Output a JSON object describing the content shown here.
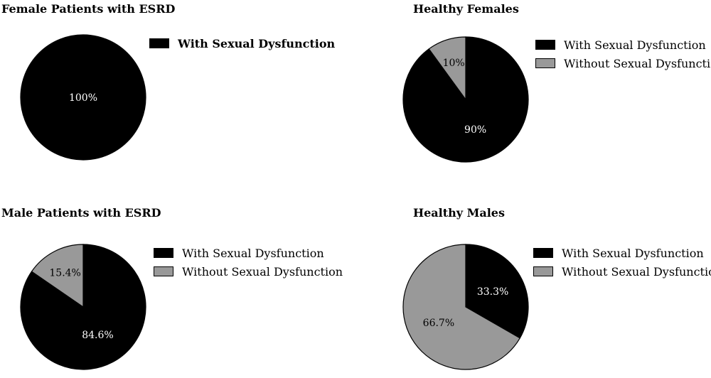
{
  "chart_data": [
    {
      "type": "pie",
      "title": "Female Patients with ESRD",
      "slices": [
        {
          "label": "With Sexual Dysfunction",
          "value": 100,
          "text": "100%",
          "color": "#000000",
          "text_color": "#ffffff"
        }
      ],
      "legend_bold": true
    },
    {
      "type": "pie",
      "title": "Healthy Females",
      "slices": [
        {
          "label": "With Sexual Dysfunction",
          "value": 90,
          "text": "90%",
          "color": "#000000",
          "text_color": "#ffffff"
        },
        {
          "label": "Without Sexual Dysfunction",
          "value": 10,
          "text": "10%",
          "color": "#999999",
          "text_color": "#000000"
        }
      ],
      "legend_bold": false
    },
    {
      "type": "pie",
      "title": "Male Patients with ESRD",
      "slices": [
        {
          "label": "With Sexual Dysfunction",
          "value": 84.6,
          "text": "84.6%",
          "color": "#000000",
          "text_color": "#ffffff"
        },
        {
          "label": "Without Sexual Dysfunction",
          "value": 15.4,
          "text": "15.4%",
          "color": "#999999",
          "text_color": "#000000"
        }
      ],
      "legend_bold": false
    },
    {
      "type": "pie",
      "title": "Healthy Males",
      "slices": [
        {
          "label": "With Sexual Dysfunction",
          "value": 33.3,
          "text": "33.3%",
          "color": "#000000",
          "text_color": "#ffffff"
        },
        {
          "label": "Without Sexual Dysfunction",
          "value": 66.7,
          "text": "66.7%",
          "color": "#999999",
          "text_color": "#000000"
        }
      ],
      "legend_bold": false
    }
  ]
}
